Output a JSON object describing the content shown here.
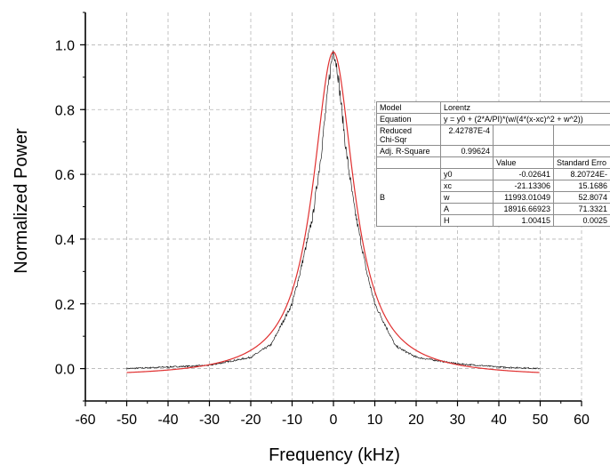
{
  "chart_data": {
    "type": "line",
    "title": "",
    "xlabel": "Frequency (kHz)",
    "ylabel": "Normalized Power",
    "xlim": [
      -60,
      60
    ],
    "ylim": [
      -0.1,
      1.1
    ],
    "x_ticks": [
      "-60",
      "-50",
      "-40",
      "-30",
      "-20",
      "-10",
      "0",
      "10",
      "20",
      "30",
      "40",
      "50",
      "60"
    ],
    "y_ticks": [
      "0.0",
      "0.2",
      "0.4",
      "0.6",
      "0.8",
      "1.0"
    ],
    "grid": true,
    "series": [
      {
        "color": "#000000",
        "x_range": [
          -50,
          50
        ],
        "note_points": [
          [
            -50,
            0.0
          ],
          [
            -30,
            0.01
          ],
          [
            -20,
            0.035
          ],
          [
            -15,
            0.075
          ],
          [
            -10,
            0.2
          ],
          [
            -8,
            0.3
          ],
          [
            -5,
            0.47
          ],
          [
            -3,
            0.66
          ],
          [
            -1,
            0.9
          ],
          [
            0,
            0.99
          ],
          [
            1,
            0.92
          ],
          [
            3,
            0.68
          ],
          [
            5,
            0.5
          ],
          [
            8,
            0.3
          ],
          [
            10,
            0.2
          ],
          [
            15,
            0.07
          ],
          [
            20,
            0.035
          ],
          [
            30,
            0.015
          ],
          [
            40,
            0.005
          ],
          [
            50,
            0.0
          ]
        ]
      },
      {
        "color": "#e03030",
        "fit": {
          "y0": -0.02641,
          "xc": -21.13306,
          "w": 11993.01049,
          "A": 18916.66923,
          "x_scale": 1000
        }
      }
    ],
    "fit_table": {
      "model_label": "Model",
      "model_value": "Lorentz",
      "equation_label": "Equation",
      "equation_value": "y = y0 + (2*A/PI)*(w/(4*(x-xc)^2 + w^2))",
      "chisqr_label_1": "Reduced",
      "chisqr_label_2": "Chi-Sqr",
      "chisqr_value": "2.42787E-4",
      "r2_label": "Adj. R-Square",
      "r2_value": "0.99624",
      "value_header": "Value",
      "stderr_header": "Standard Erro",
      "group_label": "B",
      "params": [
        {
          "name": "y0",
          "value": "-0.02641",
          "error": "8.20724E-"
        },
        {
          "name": "xc",
          "value": "-21.13306",
          "error": "15.1686"
        },
        {
          "name": "w",
          "value": "11993.01049",
          "error": "52.8074"
        },
        {
          "name": "A",
          "value": "18916.66923",
          "error": "71.3321"
        },
        {
          "name": "H",
          "value": "1.00415",
          "error": "0.0025"
        }
      ]
    }
  }
}
